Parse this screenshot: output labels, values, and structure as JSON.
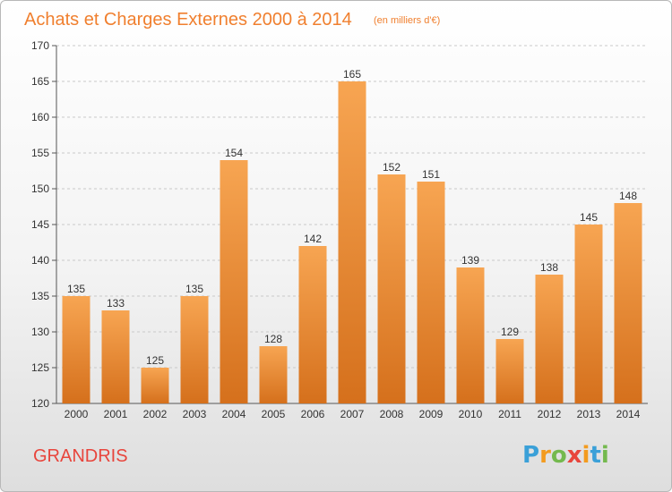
{
  "chart_data": {
    "type": "bar",
    "title": "Achats et Charges Externes 2000 à 2014",
    "subtitle": "(en milliers d'€)",
    "categories": [
      "2000",
      "2001",
      "2002",
      "2003",
      "2004",
      "2005",
      "2006",
      "2007",
      "2008",
      "2009",
      "2010",
      "2011",
      "2012",
      "2013",
      "2014"
    ],
    "values": [
      135,
      133,
      125,
      135,
      154,
      128,
      142,
      165,
      152,
      151,
      139,
      129,
      138,
      145,
      148
    ],
    "ylim": [
      120,
      170
    ],
    "yticks": [
      120,
      125,
      130,
      135,
      140,
      145,
      150,
      155,
      160,
      165,
      170
    ],
    "grid": true,
    "bar_color_top": "#f7a552",
    "bar_color_bottom": "#d5701c"
  },
  "commune": "GRANDRIS",
  "brand": {
    "letters": [
      "P",
      "r",
      "o",
      "x",
      "i",
      "t",
      "i"
    ],
    "colors": [
      "#3aa0d8",
      "#f39b1f",
      "#74b94e",
      "#e8453c",
      "#f39b1f",
      "#3aa0d8",
      "#74b94e"
    ]
  }
}
